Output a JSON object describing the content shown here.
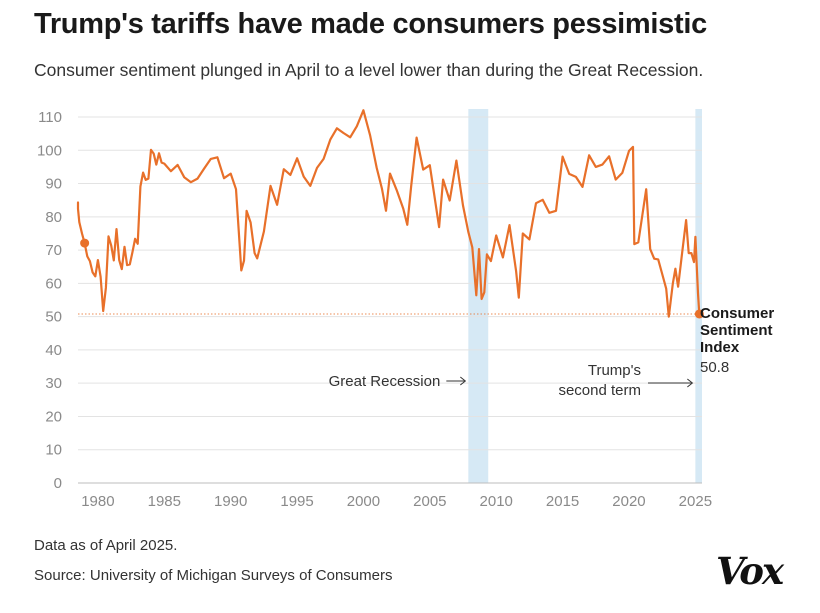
{
  "title": "Trump's tariffs have made consumers pessimistic",
  "subtitle": "Consumer sentiment plunged in April to a level lower than during the Great Recession.",
  "footnotes": {
    "data_as_of": "Data as of April 2025.",
    "source": "Source: University of Michigan Surveys of Consumers"
  },
  "logo": "Vox",
  "colors": {
    "line": "#e8702a",
    "shade": "#d6e9f5",
    "grid": "#e3e3e3",
    "tick": "#8a8a8a",
    "text": "#222222"
  },
  "chart_data": {
    "type": "line",
    "title": "Trump's tariffs have made consumers pessimistic",
    "subtitle": "Consumer sentiment plunged in April to a level lower than during the Great Recession.",
    "xlabel": "",
    "ylabel": "",
    "xlim": [
      1978.5,
      2025.5
    ],
    "ylim": [
      0,
      110
    ],
    "grid": true,
    "legend": "none",
    "x_ticks": [
      1980,
      1985,
      1990,
      1995,
      2000,
      2005,
      2010,
      2015,
      2020,
      2025
    ],
    "x_tick_labels": [
      "1980",
      "1985",
      "1990",
      "1995",
      "2000",
      "2005",
      "2010",
      "2015",
      "2020",
      "2025"
    ],
    "y_ticks": [
      0,
      10,
      20,
      30,
      40,
      50,
      60,
      70,
      80,
      90,
      100,
      110
    ],
    "y_tick_labels": [
      "0",
      "10",
      "20",
      "30",
      "40",
      "50",
      "60",
      "70",
      "80",
      "90",
      "100",
      "110"
    ],
    "reference_line": 50.8,
    "shaded_periods": [
      {
        "label": "Great Recession",
        "start": 2007.9,
        "end": 2009.4
      },
      {
        "label": "Trump's second term",
        "lines": [
          "Trump's",
          "second term"
        ],
        "start": 2025.0,
        "end": 2025.6
      }
    ],
    "series": [
      {
        "name": "Consumer Sentiment Index",
        "label_lines": [
          "Consumer",
          "Sentiment",
          "Index"
        ],
        "last_value_label": "50.8",
        "x": [
          1978.0,
          1978.2,
          1978.4,
          1978.6,
          1978.8,
          1979.0,
          1979.2,
          1979.4,
          1979.6,
          1979.8,
          1980.0,
          1980.2,
          1980.4,
          1980.6,
          1980.8,
          1981.0,
          1981.2,
          1981.4,
          1981.6,
          1981.8,
          1982.0,
          1982.2,
          1982.4,
          1982.6,
          1982.8,
          1983.0,
          1983.2,
          1983.4,
          1983.6,
          1983.8,
          1984.0,
          1984.2,
          1984.4,
          1984.6,
          1984.8,
          1985.0,
          1985.5,
          1986.0,
          1986.5,
          1987.0,
          1987.5,
          1988.0,
          1988.5,
          1989.0,
          1989.5,
          1990.0,
          1990.4,
          1990.6,
          1990.8,
          1991.0,
          1991.2,
          1991.5,
          1991.8,
          1992.0,
          1992.5,
          1993.0,
          1993.5,
          1994.0,
          1994.5,
          1995.0,
          1995.5,
          1996.0,
          1996.5,
          1997.0,
          1997.5,
          1998.0,
          1998.5,
          1999.0,
          1999.5,
          2000.0,
          2000.5,
          2001.0,
          2001.4,
          2001.7,
          2002.0,
          2002.5,
          2003.0,
          2003.3,
          2003.6,
          2004.0,
          2004.5,
          2005.0,
          2005.7,
          2006.0,
          2006.5,
          2007.0,
          2007.5,
          2007.9,
          2008.2,
          2008.5,
          2008.7,
          2008.9,
          2009.1,
          2009.3,
          2009.6,
          2010.0,
          2010.5,
          2011.0,
          2011.5,
          2011.7,
          2012.0,
          2012.5,
          2013.0,
          2013.5,
          2014.0,
          2014.5,
          2015.0,
          2015.5,
          2016.0,
          2016.5,
          2017.0,
          2017.5,
          2018.0,
          2018.5,
          2019.0,
          2019.5,
          2020.0,
          2020.3,
          2020.4,
          2020.7,
          2021.0,
          2021.3,
          2021.6,
          2021.9,
          2022.2,
          2022.5,
          2022.8,
          2023.0,
          2023.3,
          2023.5,
          2023.7,
          2024.0,
          2024.3,
          2024.5,
          2024.7,
          2024.9,
          2025.0,
          2025.2,
          2025.3
        ],
        "values": [
          83.7,
          84.3,
          82.4,
          78.4,
          75.0,
          72.1,
          68.1,
          66.7,
          63.3,
          62.1,
          67.0,
          62.0,
          51.7,
          58.7,
          74.1,
          71.4,
          66.9,
          76.3,
          67.0,
          64.3,
          71.0,
          65.5,
          65.7,
          69.3,
          73.4,
          71.9,
          89.1,
          93.3,
          91.1,
          91.5,
          100.1,
          99.0,
          95.7,
          99.1,
          96.3,
          96.0,
          93.7,
          95.6,
          91.9,
          90.4,
          91.5,
          94.5,
          97.4,
          97.9,
          91.6,
          93.0,
          88.3,
          76.4,
          63.9,
          66.8,
          81.8,
          78.3,
          69.1,
          67.5,
          75.6,
          89.3,
          83.6,
          94.3,
          92.6,
          97.6,
          92.1,
          89.3,
          94.7,
          97.4,
          103.2,
          106.6,
          105.2,
          103.9,
          107.2,
          112.0,
          104.5,
          94.7,
          88.4,
          81.8,
          93.0,
          88.1,
          82.4,
          77.6,
          89.3,
          103.8,
          94.2,
          95.5,
          76.9,
          91.2,
          84.9,
          96.9,
          83.4,
          75.5,
          70.8,
          56.4,
          70.3,
          55.3,
          57.3,
          68.7,
          66.7,
          74.4,
          67.8,
          77.5,
          63.7,
          55.7,
          75.0,
          73.2,
          84.1,
          85.1,
          81.2,
          81.8,
          98.1,
          92.9,
          92.0,
          89.0,
          98.5,
          95.0,
          95.7,
          98.2,
          91.2,
          93.2,
          99.8,
          101.0,
          71.8,
          72.3,
          80.4,
          88.3,
          70.3,
          67.4,
          67.2,
          62.8,
          58.4,
          50.0,
          59.9,
          64.4,
          59.0,
          69.1,
          79.0,
          69.1,
          69.1,
          66.4,
          74.0,
          57.0,
          50.8
        ]
      }
    ]
  }
}
